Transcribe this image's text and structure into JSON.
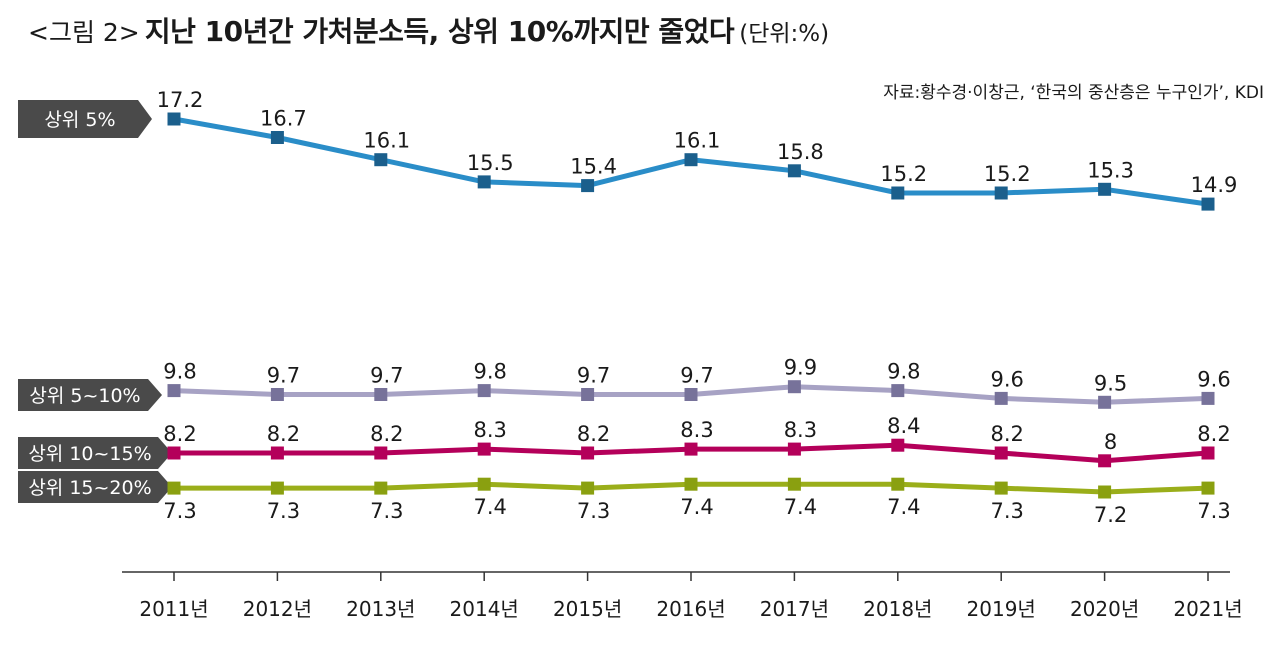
{
  "header": {
    "prefix": "<그림 2>",
    "title": "지난 10년간 가처분소득, 상위 10%까지만 줄었다",
    "unit": "(단위:%)"
  },
  "source": "자료:황수경·이창근, ‘한국의 중산층은 누구인가’, KDI",
  "colors": {
    "badge_bg": "#4a4a4a",
    "axis": "#333333"
  },
  "chart_data": {
    "type": "line",
    "title": "지난 10년간 가처분소득, 상위 10%까지만 줄었다",
    "unit": "%",
    "categories": [
      "2011년",
      "2012년",
      "2013년",
      "2014년",
      "2015년",
      "2016년",
      "2017년",
      "2018년",
      "2019년",
      "2020년",
      "2021년"
    ],
    "series": [
      {
        "name": "상위 5%",
        "color": "#2a8dc8",
        "marker": "#1b5f8c",
        "label_pos": "above",
        "labels": [
          "17.2",
          "16.7",
          "16.1",
          "15.5",
          "15.4",
          "16.1",
          "15.8",
          "15.2",
          "15.2",
          "15.3",
          "14.9"
        ],
        "values": [
          17.2,
          16.7,
          16.1,
          15.5,
          15.4,
          16.1,
          15.8,
          15.2,
          15.2,
          15.3,
          14.9
        ]
      },
      {
        "name": "상위 5~10%",
        "color": "#a7a2c4",
        "marker": "#77729a",
        "label_pos": "above",
        "labels": [
          "9.8",
          "9.7",
          "9.7",
          "9.8",
          "9.7",
          "9.7",
          "9.9",
          "9.8",
          "9.6",
          "9.5",
          "9.6"
        ],
        "values": [
          9.8,
          9.7,
          9.7,
          9.8,
          9.7,
          9.7,
          9.9,
          9.8,
          9.6,
          9.5,
          9.6
        ]
      },
      {
        "name": "상위 10~15%",
        "color": "#b4005a",
        "marker": "#b4005a",
        "label_pos": "above",
        "labels": [
          "8.2",
          "8.2",
          "8.2",
          "8.3",
          "8.2",
          "8.3",
          "8.3",
          "8.4",
          "8.2",
          "8",
          "8.2"
        ],
        "values": [
          8.2,
          8.2,
          8.2,
          8.3,
          8.2,
          8.3,
          8.3,
          8.4,
          8.2,
          8.0,
          8.2
        ]
      },
      {
        "name": "상위 15~20%",
        "color": "#9aae1a",
        "marker": "#8aa010",
        "label_pos": "below",
        "labels": [
          "7.3",
          "7.3",
          "7.3",
          "7.4",
          "7.3",
          "7.4",
          "7.4",
          "7.4",
          "7.3",
          "7.2",
          "7.3"
        ],
        "values": [
          7.3,
          7.3,
          7.3,
          7.4,
          7.3,
          7.4,
          7.4,
          7.4,
          7.3,
          7.2,
          7.3
        ]
      }
    ]
  }
}
